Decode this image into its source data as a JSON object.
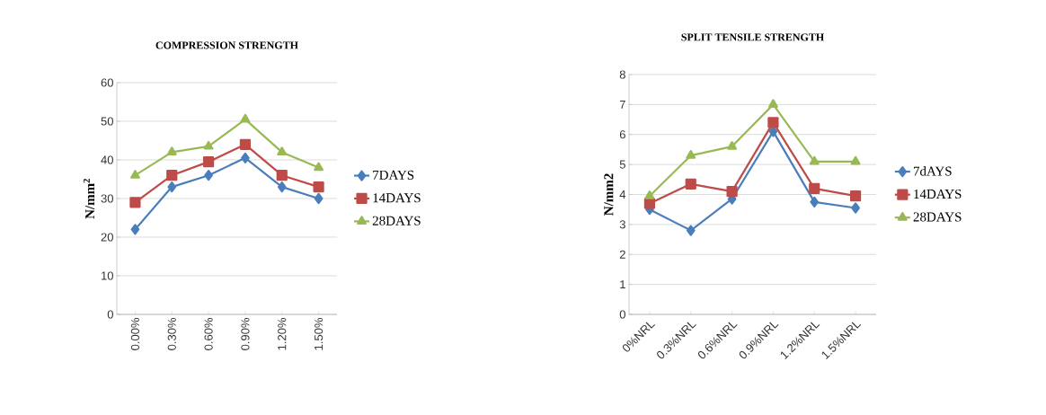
{
  "chart_data": [
    {
      "type": "line",
      "title": "COMPRESSION STRENGTH",
      "ylabel": "N/mm$^{2}$",
      "categories": [
        "0.00%",
        "0.30%",
        "0.60%",
        "0.90%",
        "1.20%",
        "1.50%"
      ],
      "series": [
        {
          "name": "7DAYS",
          "color": "#4a7ebb",
          "marker": "diamond",
          "values": [
            22,
            33,
            36,
            40.5,
            33,
            30
          ]
        },
        {
          "name": "14DAYS",
          "color": "#be4b48",
          "marker": "square",
          "values": [
            29,
            36,
            39.5,
            44,
            36,
            33
          ]
        },
        {
          "name": "28DAYS",
          "color": "#98b954",
          "marker": "triangle",
          "values": [
            36,
            42,
            43.5,
            50.5,
            42,
            38
          ]
        }
      ],
      "ylim": [
        0,
        60
      ],
      "yticks": [
        0,
        10,
        20,
        30,
        40,
        50,
        60
      ],
      "grid": "y",
      "legend": "right"
    },
    {
      "type": "line",
      "title": "SPLIT TENSILE STRENGTH",
      "ylabel": "N/mm2",
      "categories": [
        "0%NRL",
        "0.3%NRL",
        "0.6%NRL",
        "0.9%NRL",
        "1.2%NRL",
        "1.5%NRL"
      ],
      "series": [
        {
          "name": "7dAYS",
          "color": "#4a7ebb",
          "marker": "diamond",
          "values": [
            3.5,
            2.8,
            3.85,
            6.1,
            3.75,
            3.55
          ]
        },
        {
          "name": "14DAYS",
          "color": "#be4b48",
          "marker": "square",
          "values": [
            3.7,
            4.35,
            4.1,
            6.4,
            4.2,
            3.95
          ]
        },
        {
          "name": "28DAYS",
          "color": "#98b954",
          "marker": "triangle",
          "values": [
            3.95,
            5.3,
            5.6,
            7.0,
            5.1,
            5.1
          ]
        }
      ],
      "ylim": [
        0,
        8
      ],
      "yticks": [
        0,
        1,
        2,
        3,
        4,
        5,
        6,
        7,
        8
      ],
      "grid": "y",
      "legend": "right"
    }
  ]
}
